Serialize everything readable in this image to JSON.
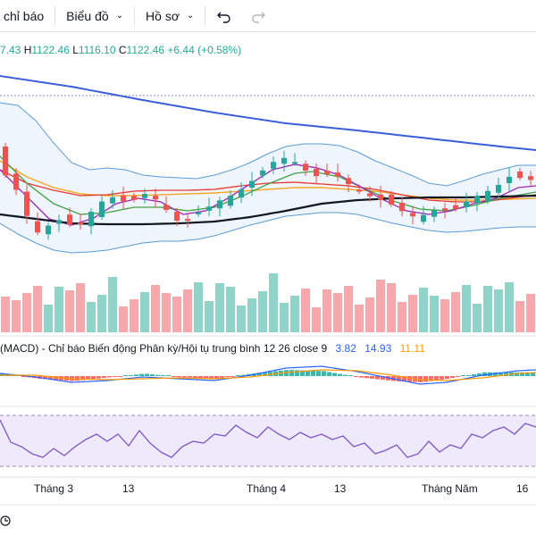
{
  "toolbar": {
    "indicators_label": "chỉ báo",
    "chart_menu_label": "Biểu đồ",
    "profile_menu_label": "Hồ sơ",
    "undo_icon": "undo-icon",
    "redo_icon": "redo-icon"
  },
  "legend": {
    "open_fragment": "7.43",
    "high_label": "H",
    "high_value": "1122.46",
    "low_label": "L",
    "low_value": "1116.10",
    "close_label": "C",
    "close_value": "1122.46",
    "change": "+6.44 (+0.58%)"
  },
  "macd": {
    "title": "(MACD) - Chỉ báo Biến động Phân kỳ/Hội tụ trung bình 12 26 close 9",
    "value_1": "3.82",
    "value_2": "14.93",
    "value_3": "11.11"
  },
  "time_axis": {
    "labels": [
      "Tháng 3",
      "13",
      "Tháng 4",
      "13",
      "Tháng Năm",
      "16"
    ]
  },
  "colors": {
    "up": "#26a69a",
    "down": "#ef5350",
    "vol_up": "#8fd3c9",
    "vol_down": "#f7a8ac",
    "long_ma": "#3b5ed8",
    "ma_black": "#131722",
    "ma_red": "#e53935",
    "ma_orange": "#f5a623",
    "ma_green": "#43a047",
    "ma_purple": "#9c27b0",
    "bb": "#5b9bd5",
    "rsi": "#7e57c2"
  }
}
